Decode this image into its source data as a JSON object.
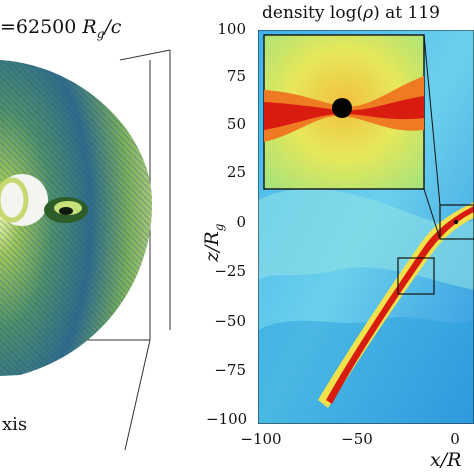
{
  "left_panel": {
    "time_label": "=62500 R_g/c",
    "time_prefix": "=62500 ",
    "time_var": "R",
    "time_sub": "g",
    "time_suffix": "/c",
    "axis_fragment": "xis"
  },
  "right_panel": {
    "title_prefix": "density log(",
    "title_var": "ρ",
    "title_suffix": ") at 119",
    "y_axis_label": "z/R_g",
    "x_axis_label": "x/R",
    "y_ticks": [
      "100",
      "75",
      "50",
      "25",
      "0",
      "−25",
      "−50",
      "−75",
      "−100"
    ],
    "x_ticks": [
      "−100",
      "−50",
      "0"
    ]
  },
  "colors": {
    "jet_core": "#d81c10",
    "disk_green": "#6fa84a",
    "background_cyan": "#5ec8ea",
    "inset_yellow": "#e8e25a"
  }
}
